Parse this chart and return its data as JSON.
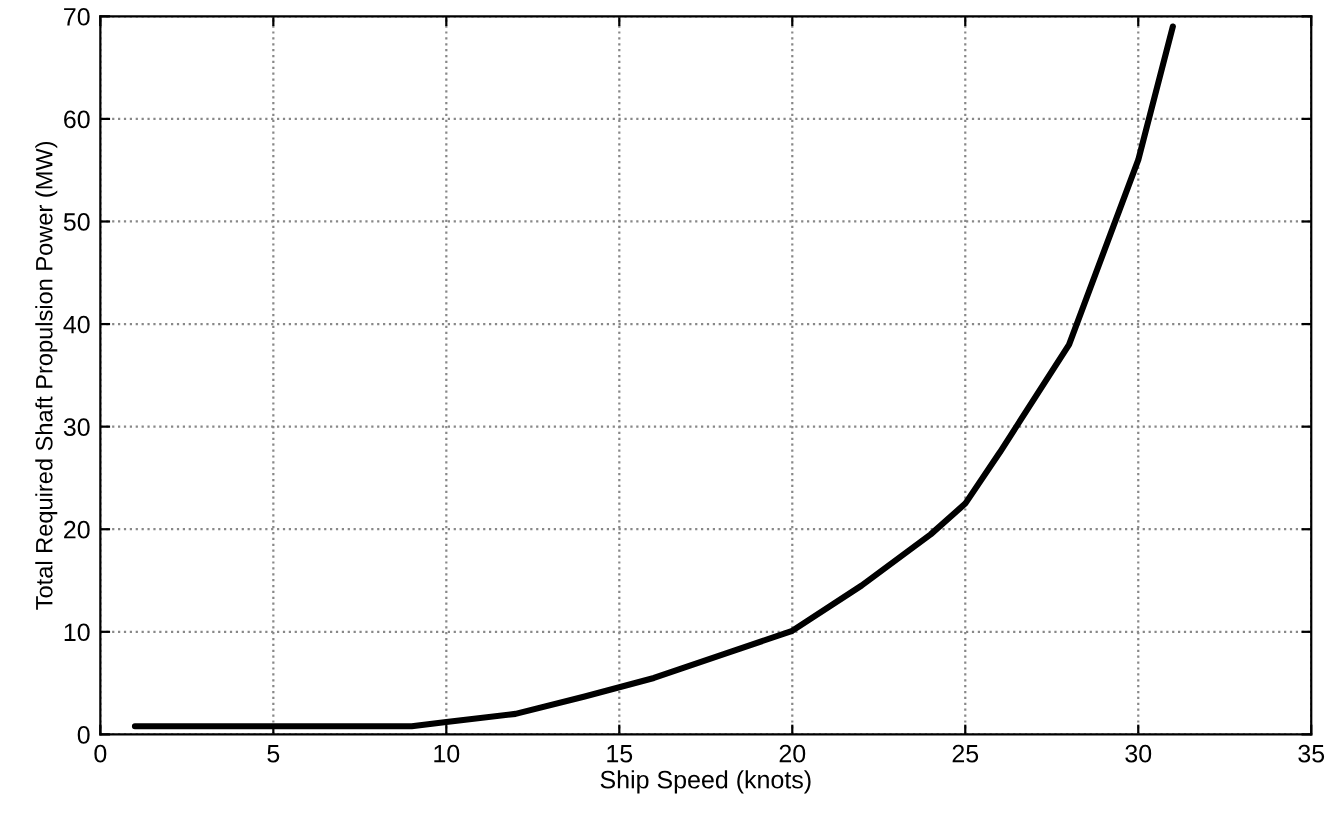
{
  "chart_data": {
    "type": "line",
    "xlabel": "Ship Speed (knots)",
    "ylabel": "Total Required Shaft Propulsion Power (MW)",
    "series": [
      {
        "color": "#000000",
        "x": [
          1,
          5,
          9,
          10,
          12,
          14,
          16,
          18,
          20,
          22,
          24,
          25,
          26,
          28,
          30,
          31
        ],
        "values": [
          0.8,
          0.8,
          0.8,
          1.2,
          2,
          3.7,
          5.5,
          7.8,
          10.1,
          14.5,
          19.5,
          22.5,
          27.5,
          38,
          56,
          69
        ]
      }
    ],
    "xlim": [
      0,
      35
    ],
    "xticks": [
      0,
      5,
      10,
      15,
      20,
      25,
      30,
      35
    ],
    "ylim": [
      0,
      70
    ],
    "yticks": [
      0,
      10,
      20,
      30,
      40,
      50,
      60,
      70
    ],
    "grid": true,
    "line_style": "solid",
    "marker": "none"
  }
}
